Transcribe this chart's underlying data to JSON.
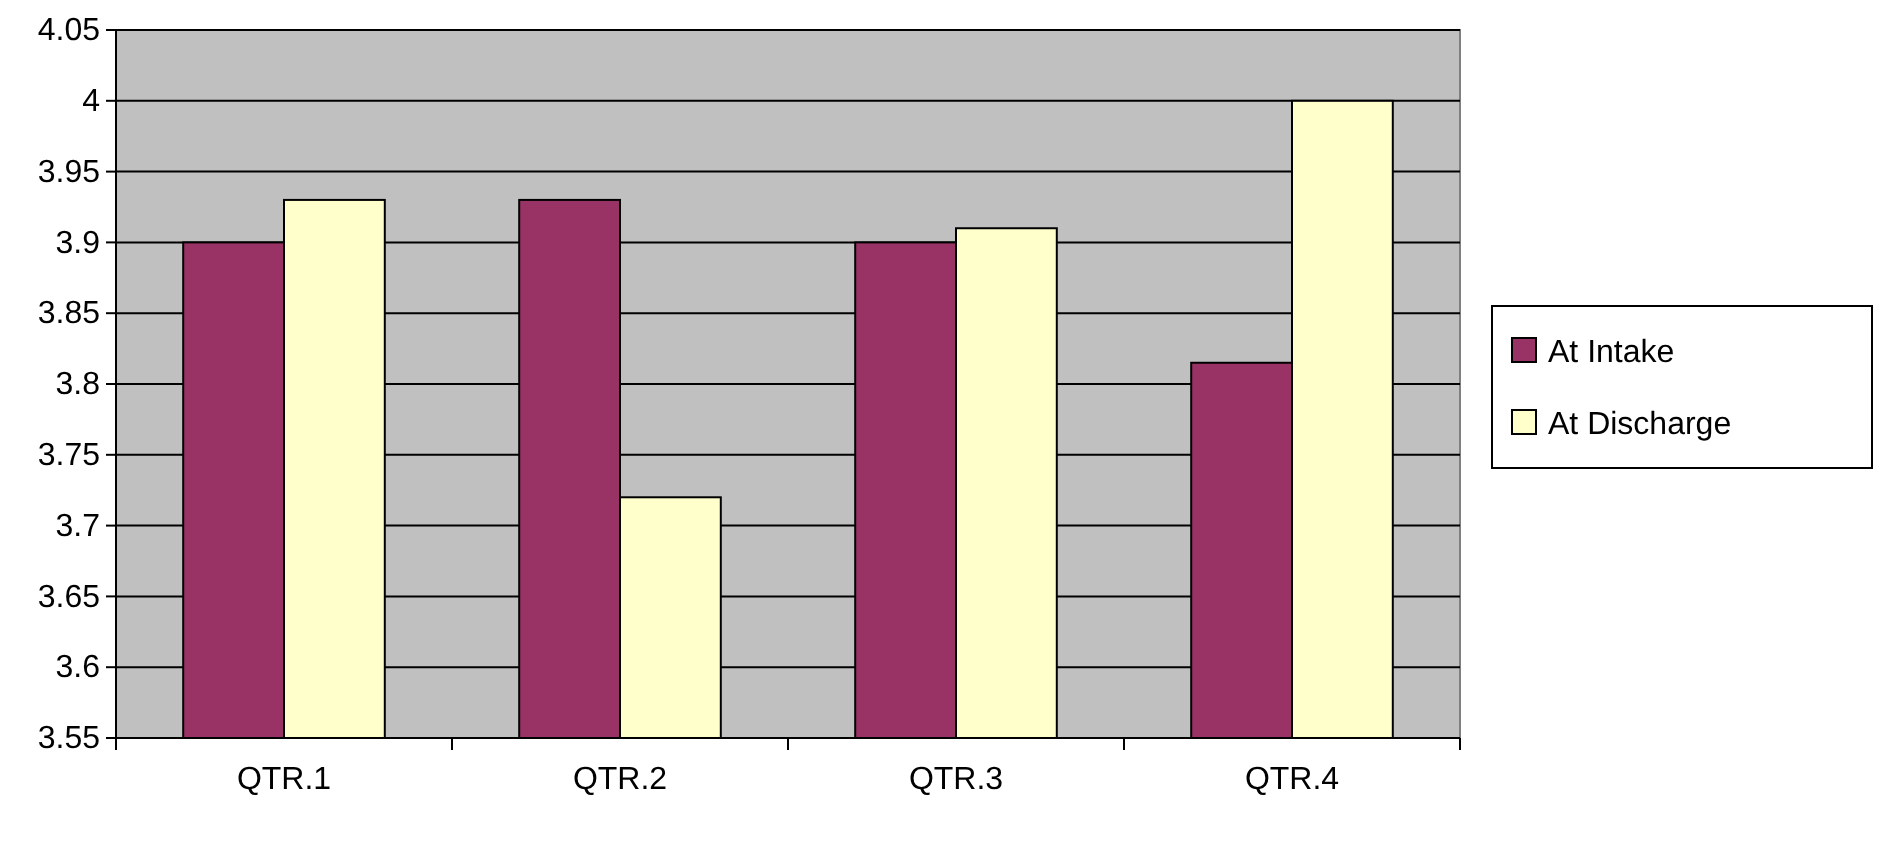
{
  "chart_data": {
    "type": "bar",
    "categories": [
      "QTR.1",
      "QTR.2",
      "QTR.3",
      "QTR.4"
    ],
    "series": [
      {
        "name": "At Intake",
        "color": "#993366",
        "values": [
          3.9,
          3.93,
          3.9,
          3.815
        ]
      },
      {
        "name": "At Discharge",
        "color": "#ffffcc",
        "values": [
          3.93,
          3.72,
          3.91,
          4.0
        ]
      }
    ],
    "ylim": [
      3.55,
      4.05
    ],
    "yticks": [
      3.55,
      3.6,
      3.65,
      3.7,
      3.75,
      3.8,
      3.85,
      3.9,
      3.95,
      4,
      4.05
    ],
    "grid": "y",
    "legend": "right"
  }
}
